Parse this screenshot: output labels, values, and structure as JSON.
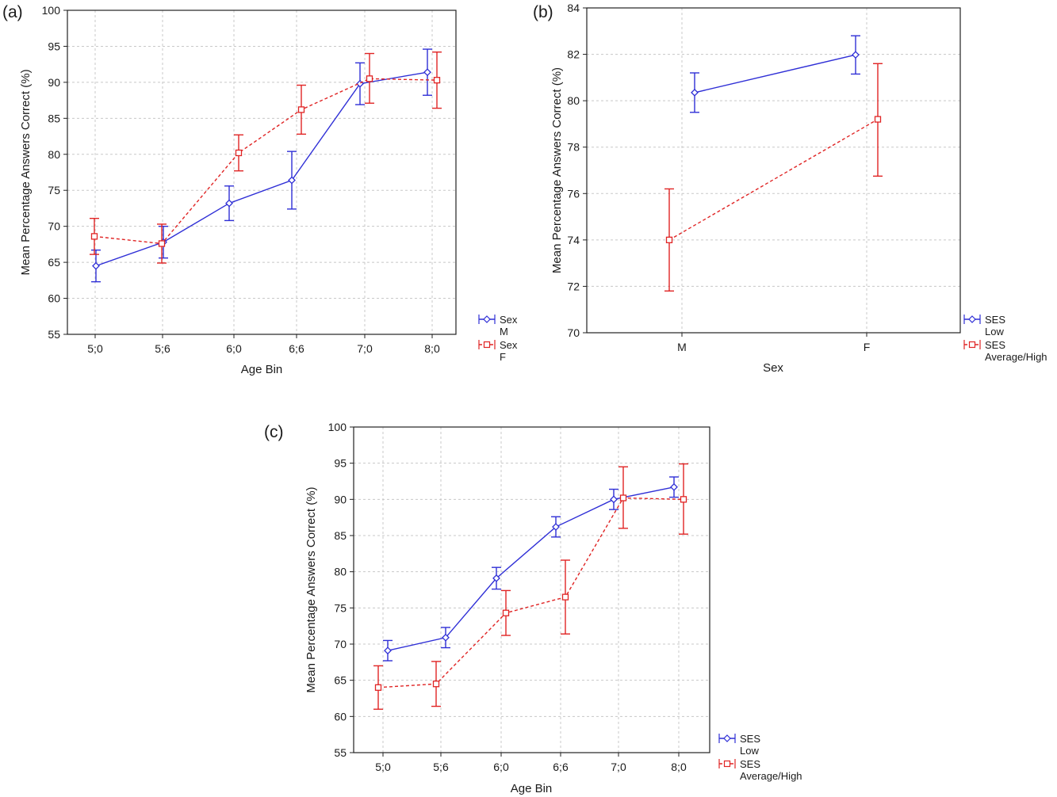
{
  "chart_data": [
    {
      "panel": "(a)",
      "type": "line",
      "xlabel": "Age Bin",
      "ylabel": "Mean Percentage Answers Correct (%)",
      "categories": [
        "5;0",
        "5;6",
        "6;0",
        "6;6",
        "7;0",
        "8;0"
      ],
      "ylim": [
        55,
        100
      ],
      "yticks": [
        "55",
        "60",
        "65",
        "70",
        "75",
        "80",
        "85",
        "90",
        "95",
        "100"
      ],
      "grid": true,
      "error_bars": true,
      "legend_position": "bottom-right outside",
      "series": [
        {
          "name": "Sex M",
          "legend_line1": "Sex",
          "legend_line2": "M",
          "color": "#2f2fd6",
          "marker": "diamond",
          "linestyle": "solid",
          "values": [
            64.5,
            67.8,
            73.2,
            76.4,
            89.8,
            91.4
          ],
          "err_low": [
            62.3,
            65.6,
            70.8,
            72.4,
            86.9,
            88.2
          ],
          "err_high": [
            66.7,
            70.0,
            75.6,
            80.4,
            92.7,
            94.6
          ]
        },
        {
          "name": "Sex F",
          "legend_line1": "Sex",
          "legend_line2": "F",
          "color": "#e02424",
          "marker": "square",
          "linestyle": "dashed",
          "values": [
            68.6,
            67.6,
            80.2,
            86.2,
            90.5,
            90.3
          ],
          "err_low": [
            66.1,
            64.9,
            77.7,
            82.8,
            87.1,
            86.4
          ],
          "err_high": [
            71.1,
            70.3,
            82.7,
            89.6,
            94.0,
            94.2
          ]
        }
      ]
    },
    {
      "panel": "(b)",
      "type": "line",
      "xlabel": "Sex",
      "ylabel": "Mean Percentage Answers Correct (%)",
      "categories": [
        "M",
        "F"
      ],
      "ylim": [
        70,
        84
      ],
      "yticks": [
        "70",
        "72",
        "74",
        "76",
        "78",
        "80",
        "82",
        "84"
      ],
      "grid": true,
      "error_bars": true,
      "legend_position": "bottom-right outside",
      "series": [
        {
          "name": "SES Low",
          "legend_line1": "SES",
          "legend_line2": "Low",
          "color": "#2f2fd6",
          "marker": "diamond",
          "linestyle": "solid",
          "values": [
            80.35,
            81.98
          ],
          "err_low": [
            79.5,
            81.15
          ],
          "err_high": [
            81.2,
            82.8
          ]
        },
        {
          "name": "SES Average/High",
          "legend_line1": "SES",
          "legend_line2": "Average/High",
          "color": "#e02424",
          "marker": "square",
          "linestyle": "dashed",
          "values": [
            74.0,
            79.2
          ],
          "err_low": [
            71.8,
            76.75
          ],
          "err_high": [
            76.2,
            81.6
          ]
        }
      ]
    },
    {
      "panel": "(c)",
      "type": "line",
      "xlabel": "Age Bin",
      "ylabel": "Mean Percentage Answers Correct (%)",
      "categories": [
        "5;0",
        "5;6",
        "6;0",
        "6;6",
        "7;0",
        "8;0"
      ],
      "ylim": [
        55,
        100
      ],
      "yticks": [
        "55",
        "60",
        "65",
        "70",
        "75",
        "80",
        "85",
        "90",
        "95",
        "100"
      ],
      "grid": true,
      "error_bars": true,
      "legend_position": "bottom-right outside",
      "series": [
        {
          "name": "SES Low",
          "legend_line1": "SES",
          "legend_line2": "Low",
          "color": "#2f2fd6",
          "marker": "diamond",
          "linestyle": "solid",
          "values": [
            69.1,
            70.9,
            79.1,
            86.2,
            90.0,
            91.7
          ],
          "err_low": [
            67.7,
            69.5,
            77.6,
            84.8,
            88.6,
            90.3
          ],
          "err_high": [
            70.5,
            72.3,
            80.6,
            87.6,
            91.4,
            93.1
          ]
        },
        {
          "name": "SES Average/High",
          "legend_line1": "SES",
          "legend_line2": "Average/High",
          "color": "#e02424",
          "marker": "square",
          "linestyle": "dashed",
          "values": [
            64.0,
            64.5,
            74.3,
            76.5,
            90.2,
            90.0
          ],
          "err_low": [
            61.0,
            61.4,
            71.2,
            71.4,
            86.0,
            85.2
          ],
          "err_high": [
            67.0,
            67.6,
            77.4,
            81.6,
            94.5,
            94.9
          ]
        }
      ]
    }
  ]
}
